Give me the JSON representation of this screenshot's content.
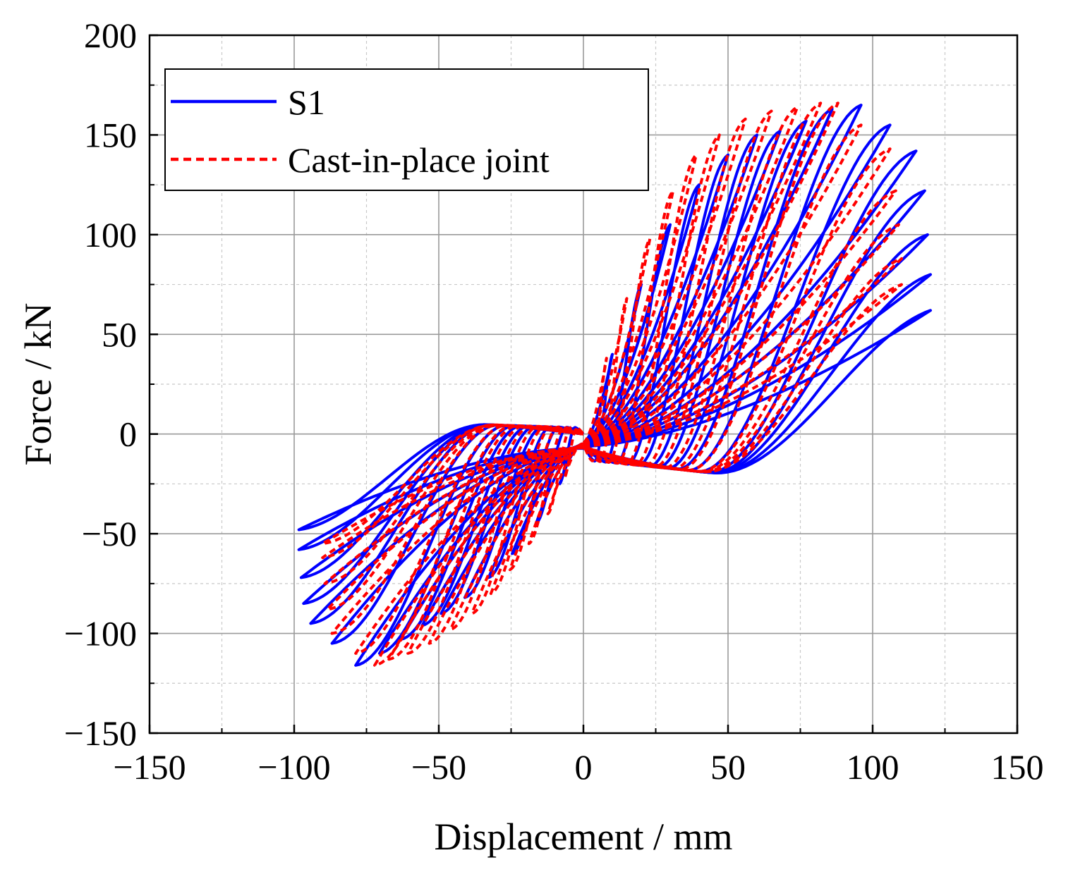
{
  "chart_data": {
    "type": "line",
    "title": "",
    "xlabel": "Displacement / mm",
    "ylabel": "Force / kN",
    "xlim": [
      -150,
      150
    ],
    "ylim": [
      -150,
      200
    ],
    "x_ticks": [
      -150,
      -100,
      -50,
      0,
      50,
      100,
      150
    ],
    "y_ticks": [
      -150,
      -100,
      -50,
      0,
      50,
      100,
      150,
      200
    ],
    "x_tick_labels": [
      "−150",
      "−100",
      "−50",
      "0",
      "50",
      "100",
      "150"
    ],
    "y_tick_labels": [
      "−150",
      "−100",
      "−50",
      "0",
      "50",
      "100",
      "150",
      "200"
    ],
    "grid": true,
    "minor_grid": true,
    "legend_position": "top-left",
    "series": [
      {
        "name": "S1",
        "color": "#0000ff",
        "style": "solid",
        "cycles": [
          {
            "d": 10,
            "fp": 40,
            "fn": -25
          },
          {
            "d": 20,
            "fp": 75,
            "fn": -45
          },
          {
            "d": 30,
            "fp": 105,
            "fn": -60
          },
          {
            "d": 40,
            "fp": 125,
            "fn": -72
          },
          {
            "d": 50,
            "fp": 140,
            "fn": -82
          },
          {
            "d": 60,
            "fp": 150,
            "fn": -90
          },
          {
            "d": 68,
            "fp": 152,
            "fn": -96
          },
          {
            "d": 77,
            "fp": 157,
            "fn": -103
          },
          {
            "d": 86,
            "fp": 163,
            "fn": -110
          },
          {
            "d": 96,
            "fp": 165,
            "fn": -116
          },
          {
            "d": 106,
            "fp": 155,
            "fn": -105
          },
          {
            "d": 115,
            "fp": 142,
            "fn": -95
          },
          {
            "d": 118,
            "fp": 122,
            "fn": -85
          },
          {
            "d": 119,
            "fp": 100,
            "fn": -72
          },
          {
            "d": 120,
            "fp": 80,
            "fn": -58
          },
          {
            "d": 120,
            "fp": 62,
            "fn": -48
          }
        ]
      },
      {
        "name": "Cast-in-place joint",
        "color": "#ff0000",
        "style": "dashed",
        "cycles": [
          {
            "d": 8,
            "fp": 38,
            "fn": -22
          },
          {
            "d": 15,
            "fp": 68,
            "fn": -40
          },
          {
            "d": 23,
            "fp": 98,
            "fn": -55
          },
          {
            "d": 31,
            "fp": 122,
            "fn": -68
          },
          {
            "d": 39,
            "fp": 140,
            "fn": -80
          },
          {
            "d": 47,
            "fp": 150,
            "fn": -90
          },
          {
            "d": 56,
            "fp": 158,
            "fn": -98
          },
          {
            "d": 65,
            "fp": 162,
            "fn": -105
          },
          {
            "d": 74,
            "fp": 164,
            "fn": -110
          },
          {
            "d": 82,
            "fp": 166,
            "fn": -113
          },
          {
            "d": 88,
            "fp": 166,
            "fn": -116
          },
          {
            "d": 96,
            "fp": 155,
            "fn": -110
          },
          {
            "d": 106,
            "fp": 143,
            "fn": -100
          },
          {
            "d": 108,
            "fp": 122,
            "fn": -88
          },
          {
            "d": 109,
            "fp": 105,
            "fn": -75
          },
          {
            "d": 110,
            "fp": 88,
            "fn": -62
          },
          {
            "d": 110,
            "fp": 75,
            "fn": -55
          }
        ]
      }
    ]
  }
}
